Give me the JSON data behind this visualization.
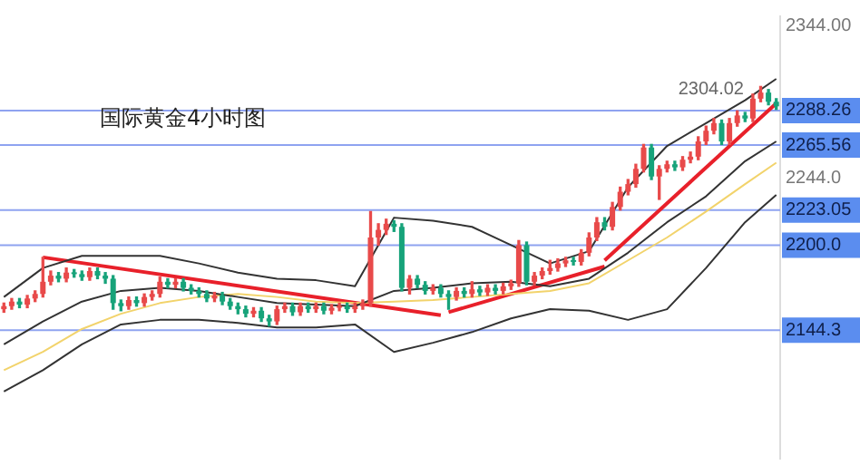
{
  "chart_data": {
    "type": "candlestick",
    "title": "国际黄金4小时图",
    "tick_labels": "y",
    "legend": false,
    "grid": false,
    "categories": [
      null,
      null,
      null,
      null,
      null,
      null,
      null,
      null,
      null,
      null,
      null,
      null,
      null,
      null,
      null,
      null,
      null,
      null,
      null,
      null,
      null,
      null,
      null,
      null,
      null,
      null,
      null,
      null,
      null,
      null,
      null,
      null,
      null,
      null,
      null,
      null,
      null,
      null,
      null,
      null,
      null,
      null,
      null,
      null,
      null,
      null,
      null,
      null,
      null,
      null,
      null,
      null,
      null,
      null,
      null,
      null,
      null,
      null,
      null,
      null,
      null,
      null,
      null,
      null,
      null,
      null,
      null,
      null,
      null,
      null,
      null,
      null,
      null,
      null,
      null,
      null,
      null,
      null,
      null,
      null,
      null,
      null,
      null,
      null,
      null,
      null,
      null,
      null,
      null,
      null,
      null,
      null,
      null,
      null,
      null,
      null,
      null,
      null,
      null,
      null
    ],
    "ohlc": [
      [
        2158,
        2162,
        2156,
        2160
      ],
      [
        2160,
        2165,
        2158,
        2163
      ],
      [
        2163,
        2165,
        2159,
        2161
      ],
      [
        2161,
        2167,
        2159,
        2165
      ],
      [
        2165,
        2170,
        2163,
        2168
      ],
      [
        2168,
        2192,
        2166,
        2176
      ],
      [
        2176,
        2183,
        2174,
        2180
      ],
      [
        2180,
        2182,
        2176,
        2178
      ],
      [
        2178,
        2185,
        2176,
        2182
      ],
      [
        2182,
        2184,
        2179,
        2181
      ],
      [
        2181,
        2183,
        2177,
        2179
      ],
      [
        2179,
        2185,
        2177,
        2183
      ],
      [
        2183,
        2185,
        2178,
        2180
      ],
      [
        2180,
        2182,
        2175,
        2178
      ],
      [
        2178,
        2180,
        2158,
        2162
      ],
      [
        2162,
        2164,
        2157,
        2160
      ],
      [
        2160,
        2166,
        2158,
        2164
      ],
      [
        2164,
        2166,
        2160,
        2162
      ],
      [
        2162,
        2168,
        2160,
        2166
      ],
      [
        2166,
        2170,
        2164,
        2168
      ],
      [
        2168,
        2179,
        2166,
        2176
      ],
      [
        2176,
        2178,
        2172,
        2174
      ],
      [
        2174,
        2178,
        2172,
        2176
      ],
      [
        2176,
        2178,
        2170,
        2172
      ],
      [
        2172,
        2174,
        2168,
        2170
      ],
      [
        2170,
        2172,
        2166,
        2168
      ],
      [
        2168,
        2170,
        2163,
        2165
      ],
      [
        2165,
        2169,
        2163,
        2167
      ],
      [
        2167,
        2169,
        2161,
        2163
      ],
      [
        2163,
        2165,
        2158,
        2160
      ],
      [
        2160,
        2162,
        2155,
        2158
      ],
      [
        2158,
        2160,
        2153,
        2155
      ],
      [
        2155,
        2159,
        2153,
        2157
      ],
      [
        2157,
        2159,
        2150,
        2152
      ],
      [
        2152,
        2154,
        2147,
        2150
      ],
      [
        2150,
        2160,
        2148,
        2158
      ],
      [
        2158,
        2162,
        2156,
        2160
      ],
      [
        2160,
        2162,
        2154,
        2156
      ],
      [
        2156,
        2162,
        2154,
        2160
      ],
      [
        2160,
        2162,
        2156,
        2158
      ],
      [
        2158,
        2162,
        2156,
        2160
      ],
      [
        2160,
        2162,
        2155,
        2157
      ],
      [
        2157,
        2161,
        2155,
        2159
      ],
      [
        2159,
        2162,
        2157,
        2160
      ],
      [
        2160,
        2162,
        2156,
        2158
      ],
      [
        2158,
        2162,
        2156,
        2160
      ],
      [
        2160,
        2164,
        2158,
        2162
      ],
      [
        2162,
        2222,
        2160,
        2205
      ],
      [
        2205,
        2214,
        2200,
        2210
      ],
      [
        2210,
        2217,
        2207,
        2214
      ],
      [
        2214,
        2216,
        2209,
        2212
      ],
      [
        2212,
        2214,
        2170,
        2172
      ],
      [
        2172,
        2180,
        2168,
        2178
      ],
      [
        2178,
        2180,
        2172,
        2174
      ],
      [
        2174,
        2176,
        2168,
        2170
      ],
      [
        2170,
        2174,
        2168,
        2172
      ],
      [
        2172,
        2174,
        2166,
        2168
      ],
      [
        2168,
        2170,
        2158,
        2166
      ],
      [
        2166,
        2172,
        2164,
        2170
      ],
      [
        2170,
        2172,
        2166,
        2168
      ],
      [
        2168,
        2176,
        2166,
        2171
      ],
      [
        2171,
        2173,
        2167,
        2169
      ],
      [
        2169,
        2174,
        2167,
        2172
      ],
      [
        2172,
        2174,
        2168,
        2170
      ],
      [
        2170,
        2175,
        2168,
        2173
      ],
      [
        2173,
        2177,
        2171,
        2175
      ],
      [
        2175,
        2203,
        2173,
        2200
      ],
      [
        2200,
        2202,
        2174,
        2176
      ],
      [
        2176,
        2182,
        2174,
        2180
      ],
      [
        2180,
        2185,
        2178,
        2183
      ],
      [
        2183,
        2190,
        2181,
        2185
      ],
      [
        2185,
        2191,
        2183,
        2188
      ],
      [
        2188,
        2192,
        2186,
        2190
      ],
      [
        2190,
        2192,
        2187,
        2189
      ],
      [
        2189,
        2197,
        2187,
        2195
      ],
      [
        2195,
        2208,
        2193,
        2205
      ],
      [
        2205,
        2218,
        2203,
        2215
      ],
      [
        2215,
        2218,
        2210,
        2212
      ],
      [
        2212,
        2228,
        2210,
        2225
      ],
      [
        2225,
        2238,
        2223,
        2235
      ],
      [
        2235,
        2243,
        2233,
        2240
      ],
      [
        2240,
        2253,
        2238,
        2250
      ],
      [
        2250,
        2266,
        2248,
        2264
      ],
      [
        2264,
        2266,
        2243,
        2245
      ],
      [
        2245,
        2252,
        2230,
        2250
      ],
      [
        2250,
        2255,
        2248,
        2253
      ],
      [
        2253,
        2255,
        2249,
        2251
      ],
      [
        2251,
        2258,
        2249,
        2256
      ],
      [
        2256,
        2261,
        2254,
        2258
      ],
      [
        2258,
        2271,
        2256,
        2268
      ],
      [
        2268,
        2278,
        2266,
        2275
      ],
      [
        2275,
        2283,
        2273,
        2280
      ],
      [
        2280,
        2282,
        2266,
        2268
      ],
      [
        2268,
        2283,
        2266,
        2280
      ],
      [
        2280,
        2288,
        2278,
        2285
      ],
      [
        2285,
        2287,
        2281,
        2283
      ],
      [
        2283,
        2299,
        2281,
        2296
      ],
      [
        2296,
        2304.02,
        2294,
        2300
      ],
      [
        2300,
        2302,
        2292,
        2294
      ],
      [
        2294,
        2296,
        2289,
        2291
      ]
    ],
    "colors": [
      "#e84a4a",
      "#e84a4a",
      "#17a37a",
      "#e84a4a",
      "#e84a4a",
      "#e84a4a",
      "#e84a4a",
      "#17a37a",
      "#e84a4a",
      "#17a37a",
      "#17a37a",
      "#e84a4a",
      "#17a37a",
      "#17a37a",
      "#17a37a",
      "#17a37a",
      "#e84a4a",
      "#17a37a",
      "#e84a4a",
      "#e84a4a",
      "#e84a4a",
      "#17a37a",
      "#e84a4a",
      "#17a37a",
      "#17a37a",
      "#17a37a",
      "#17a37a",
      "#e84a4a",
      "#17a37a",
      "#17a37a",
      "#17a37a",
      "#17a37a",
      "#e84a4a",
      "#17a37a",
      "#17a37a",
      "#e84a4a",
      "#e84a4a",
      "#17a37a",
      "#e84a4a",
      "#17a37a",
      "#e84a4a",
      "#17a37a",
      "#e84a4a",
      "#e84a4a",
      "#17a37a",
      "#e84a4a",
      "#e84a4a",
      "#e84a4a",
      "#e84a4a",
      "#e84a4a",
      "#17a37a",
      "#17a37a",
      "#e84a4a",
      "#17a37a",
      "#17a37a",
      "#e84a4a",
      "#17a37a",
      "#17a37a",
      "#e84a4a",
      "#17a37a",
      "#e84a4a",
      "#17a37a",
      "#e84a4a",
      "#17a37a",
      "#e84a4a",
      "#e84a4a",
      "#e84a4a",
      "#17a37a",
      "#e84a4a",
      "#e84a4a",
      "#e84a4a",
      "#e84a4a",
      "#e84a4a",
      "#17a37a",
      "#e84a4a",
      "#e84a4a",
      "#e84a4a",
      "#17a37a",
      "#e84a4a",
      "#e84a4a",
      "#e84a4a",
      "#e84a4a",
      "#e84a4a",
      "#17a37a",
      "#e84a4a",
      "#e84a4a",
      "#17a37a",
      "#e84a4a",
      "#e84a4a",
      "#e84a4a",
      "#e84a4a",
      "#e84a4a",
      "#17a37a",
      "#e84a4a",
      "#e84a4a",
      "#17a37a",
      "#e84a4a",
      "#e84a4a",
      "#17a37a",
      "#17a37a"
    ],
    "series": [
      {
        "type": "line",
        "color": "#333333",
        "values": [
          2166,
          null,
          null,
          null,
          null,
          2185,
          null,
          null,
          null,
          null,
          2193,
          null,
          null,
          null,
          null,
          2193,
          null,
          null,
          null,
          null,
          2193,
          null,
          null,
          null,
          null,
          2188,
          null,
          null,
          null,
          null,
          2182,
          null,
          null,
          null,
          null,
          2178,
          null,
          null,
          null,
          null,
          2177,
          null,
          null,
          null,
          null,
          2173,
          null,
          null,
          null,
          null,
          2218,
          null,
          null,
          null,
          null,
          2216,
          null,
          null,
          null,
          null,
          2212,
          null,
          null,
          null,
          null,
          2200,
          null,
          null,
          null,
          null,
          2188,
          null,
          null,
          null,
          null,
          2196,
          null,
          null,
          null,
          null,
          2238,
          null,
          null,
          null,
          null,
          2265,
          null,
          null,
          null,
          null,
          2280,
          null,
          null,
          null,
          null,
          2295,
          null,
          null,
          null,
          2309
        ]
      },
      {
        "type": "line",
        "color": "#333333",
        "values": [
          2135,
          null,
          null,
          null,
          null,
          2150,
          null,
          null,
          null,
          null,
          2163,
          null,
          null,
          null,
          null,
          2170,
          null,
          null,
          null,
          null,
          2172,
          null,
          null,
          null,
          null,
          2170,
          null,
          null,
          null,
          null,
          2166,
          null,
          null,
          null,
          null,
          2162,
          null,
          null,
          null,
          null,
          2161,
          null,
          null,
          null,
          null,
          2160,
          null,
          null,
          null,
          null,
          2170,
          null,
          null,
          null,
          null,
          2172,
          null,
          null,
          null,
          null,
          2175,
          null,
          null,
          null,
          null,
          2176,
          null,
          null,
          null,
          null,
          2173,
          null,
          null,
          null,
          null,
          2178,
          null,
          null,
          null,
          null,
          2195,
          null,
          null,
          null,
          null,
          2215,
          null,
          null,
          null,
          null,
          2232,
          null,
          null,
          null,
          null,
          2255,
          null,
          null,
          null,
          2268
        ]
      },
      {
        "type": "line",
        "color": "#333333",
        "values": [
          2104,
          null,
          null,
          null,
          null,
          2118,
          null,
          null,
          null,
          null,
          2135,
          null,
          null,
          null,
          null,
          2148,
          null,
          null,
          null,
          null,
          2151,
          null,
          null,
          null,
          null,
          2151,
          null,
          null,
          null,
          null,
          2149,
          null,
          null,
          null,
          null,
          2146,
          null,
          null,
          null,
          null,
          2146,
          null,
          null,
          null,
          null,
          2148,
          null,
          null,
          null,
          null,
          2130,
          null,
          null,
          null,
          null,
          2136,
          null,
          null,
          null,
          null,
          2143,
          null,
          null,
          null,
          null,
          2152,
          null,
          null,
          null,
          null,
          2158,
          null,
          null,
          null,
          null,
          2157,
          null,
          null,
          null,
          null,
          2151,
          null,
          null,
          null,
          null,
          2158,
          null,
          null,
          null,
          null,
          2185,
          null,
          null,
          null,
          null,
          2215,
          null,
          null,
          null,
          2233
        ]
      },
      {
        "type": "line",
        "color": "#f2d36b",
        "values": [
          2118,
          null,
          null,
          null,
          null,
          2130,
          null,
          null,
          null,
          null,
          2145,
          null,
          null,
          null,
          null,
          2155,
          null,
          null,
          null,
          null,
          2162,
          null,
          null,
          null,
          null,
          2166,
          null,
          null,
          null,
          null,
          2168,
          null,
          null,
          null,
          null,
          2166,
          null,
          null,
          null,
          null,
          2163,
          null,
          null,
          null,
          null,
          2162,
          null,
          null,
          null,
          null,
          2163,
          null,
          null,
          null,
          null,
          2164,
          null,
          null,
          null,
          null,
          2166,
          null,
          null,
          null,
          null,
          2168,
          null,
          null,
          null,
          null,
          2170,
          null,
          null,
          null,
          null,
          2175,
          null,
          null,
          null,
          null,
          2190,
          null,
          null,
          null,
          null,
          2205,
          null,
          null,
          null,
          null,
          2222,
          null,
          null,
          null,
          null,
          2240,
          null,
          null,
          null,
          2254
        ]
      },
      {
        "type": "line",
        "color": "#e8202a",
        "values": [
          null,
          null,
          null,
          null,
          null,
          2192,
          null,
          null,
          null,
          null,
          null,
          null,
          null,
          null,
          null,
          null,
          null,
          null,
          null,
          null,
          null,
          null,
          null,
          null,
          null,
          null,
          null,
          null,
          null,
          null,
          null,
          null,
          null,
          null,
          null,
          null,
          null,
          null,
          null,
          null,
          null,
          null,
          null,
          null,
          null,
          null,
          null,
          null,
          null,
          null,
          null,
          null,
          null,
          null,
          null,
          null,
          2154,
          null,
          null,
          null,
          null,
          null,
          null,
          null,
          null,
          null,
          null,
          null,
          null,
          null,
          null,
          null,
          null,
          null,
          null,
          null,
          null,
          null,
          null,
          null,
          null,
          null,
          null,
          null,
          null,
          null,
          null,
          null,
          null,
          null,
          null,
          null,
          null,
          null,
          null,
          null,
          null,
          null,
          null,
          null
        ]
      },
      {
        "type": "line",
        "color": "#e8202a",
        "values": [
          null,
          null,
          null,
          null,
          null,
          null,
          null,
          null,
          null,
          null,
          null,
          null,
          null,
          null,
          null,
          null,
          null,
          null,
          null,
          null,
          null,
          null,
          null,
          null,
          null,
          null,
          null,
          null,
          null,
          null,
          null,
          null,
          null,
          null,
          null,
          null,
          null,
          null,
          null,
          null,
          null,
          null,
          null,
          null,
          null,
          null,
          null,
          null,
          null,
          null,
          null,
          null,
          null,
          null,
          null,
          null,
          null,
          2156,
          null,
          null,
          null,
          null,
          null,
          null,
          null,
          null,
          null,
          null,
          null,
          null,
          null,
          null,
          null,
          null,
          null,
          null,
          null,
          2186,
          null,
          null,
          null,
          null,
          null,
          null,
          null,
          null,
          null,
          null,
          null,
          null,
          null,
          null,
          null,
          null,
          null,
          null,
          null,
          null,
          null,
          null
        ]
      },
      {
        "type": "line",
        "color": "#e8202a",
        "values": [
          null,
          null,
          null,
          null,
          null,
          null,
          null,
          null,
          null,
          null,
          null,
          null,
          null,
          null,
          null,
          null,
          null,
          null,
          null,
          null,
          null,
          null,
          null,
          null,
          null,
          null,
          null,
          null,
          null,
          null,
          null,
          null,
          null,
          null,
          null,
          null,
          null,
          null,
          null,
          null,
          null,
          null,
          null,
          null,
          null,
          null,
          null,
          null,
          null,
          null,
          null,
          null,
          null,
          null,
          null,
          null,
          null,
          null,
          null,
          null,
          null,
          null,
          null,
          null,
          null,
          null,
          null,
          null,
          null,
          null,
          null,
          null,
          null,
          null,
          null,
          null,
          null,
          2190,
          null,
          null,
          null,
          null,
          null,
          null,
          null,
          null,
          null,
          null,
          null,
          null,
          null,
          null,
          null,
          null,
          null,
          null,
          null,
          null,
          null,
          2293
        ]
      }
    ],
    "ylim": [
      2060,
      2350
    ],
    "yticks": [
      {
        "value": 2344,
        "label": "2344.00"
      },
      {
        "value": 2244.04,
        "label": "2244.0"
      }
    ],
    "ref_lines": [
      {
        "axis": "y",
        "value": 2288.26,
        "label": "2288.26",
        "color": "#8fa3f0"
      },
      {
        "axis": "y",
        "value": 2265.56,
        "label": "2265.56",
        "color": "#8fa3f0"
      },
      {
        "axis": "y",
        "value": 2223.05,
        "label": "2223.05",
        "color": "#8fa3f0"
      },
      {
        "axis": "y",
        "value": 2200,
        "label": "2200.0",
        "color": "#8fa3f0"
      },
      {
        "axis": "y",
        "value": 2144.31,
        "label": "2144.3",
        "color": "#8fa3f0"
      }
    ],
    "annotations": [
      "2304.02"
    ]
  }
}
